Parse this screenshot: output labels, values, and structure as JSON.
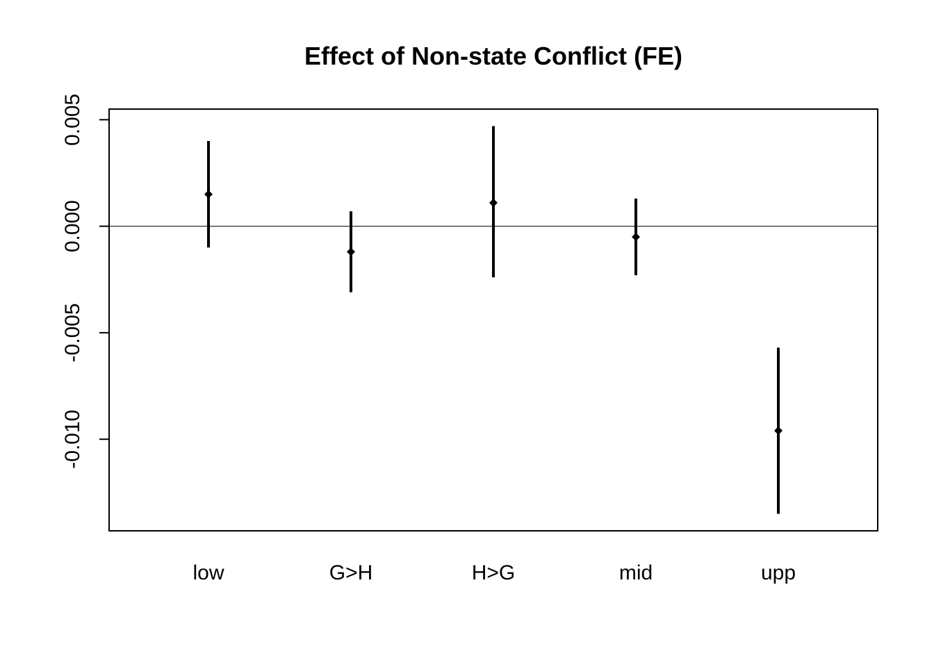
{
  "chart_data": {
    "type": "scatter",
    "title": "Effect of Non-state Conflict (FE)",
    "xlabel": "",
    "ylabel": "",
    "categories": [
      "low",
      "G>H",
      "H>G",
      "mid",
      "upp"
    ],
    "estimates": [
      0.0015,
      -0.0012,
      0.0011,
      -0.0005,
      -0.0096
    ],
    "lower": [
      -0.001,
      -0.0031,
      -0.0024,
      -0.0023,
      -0.0135
    ],
    "upper": [
      0.004,
      0.0007,
      0.0047,
      0.0013,
      -0.0057
    ],
    "ylim": [
      -0.0143,
      0.0055
    ],
    "yticks": [
      0.005,
      0.0,
      -0.005,
      -0.01
    ],
    "ytick_labels": [
      "0.005",
      "0.000",
      "-0.005",
      "-0.010"
    ],
    "reference_line": 0.0,
    "grid": false,
    "marker": "diamond",
    "color": "#000000"
  }
}
